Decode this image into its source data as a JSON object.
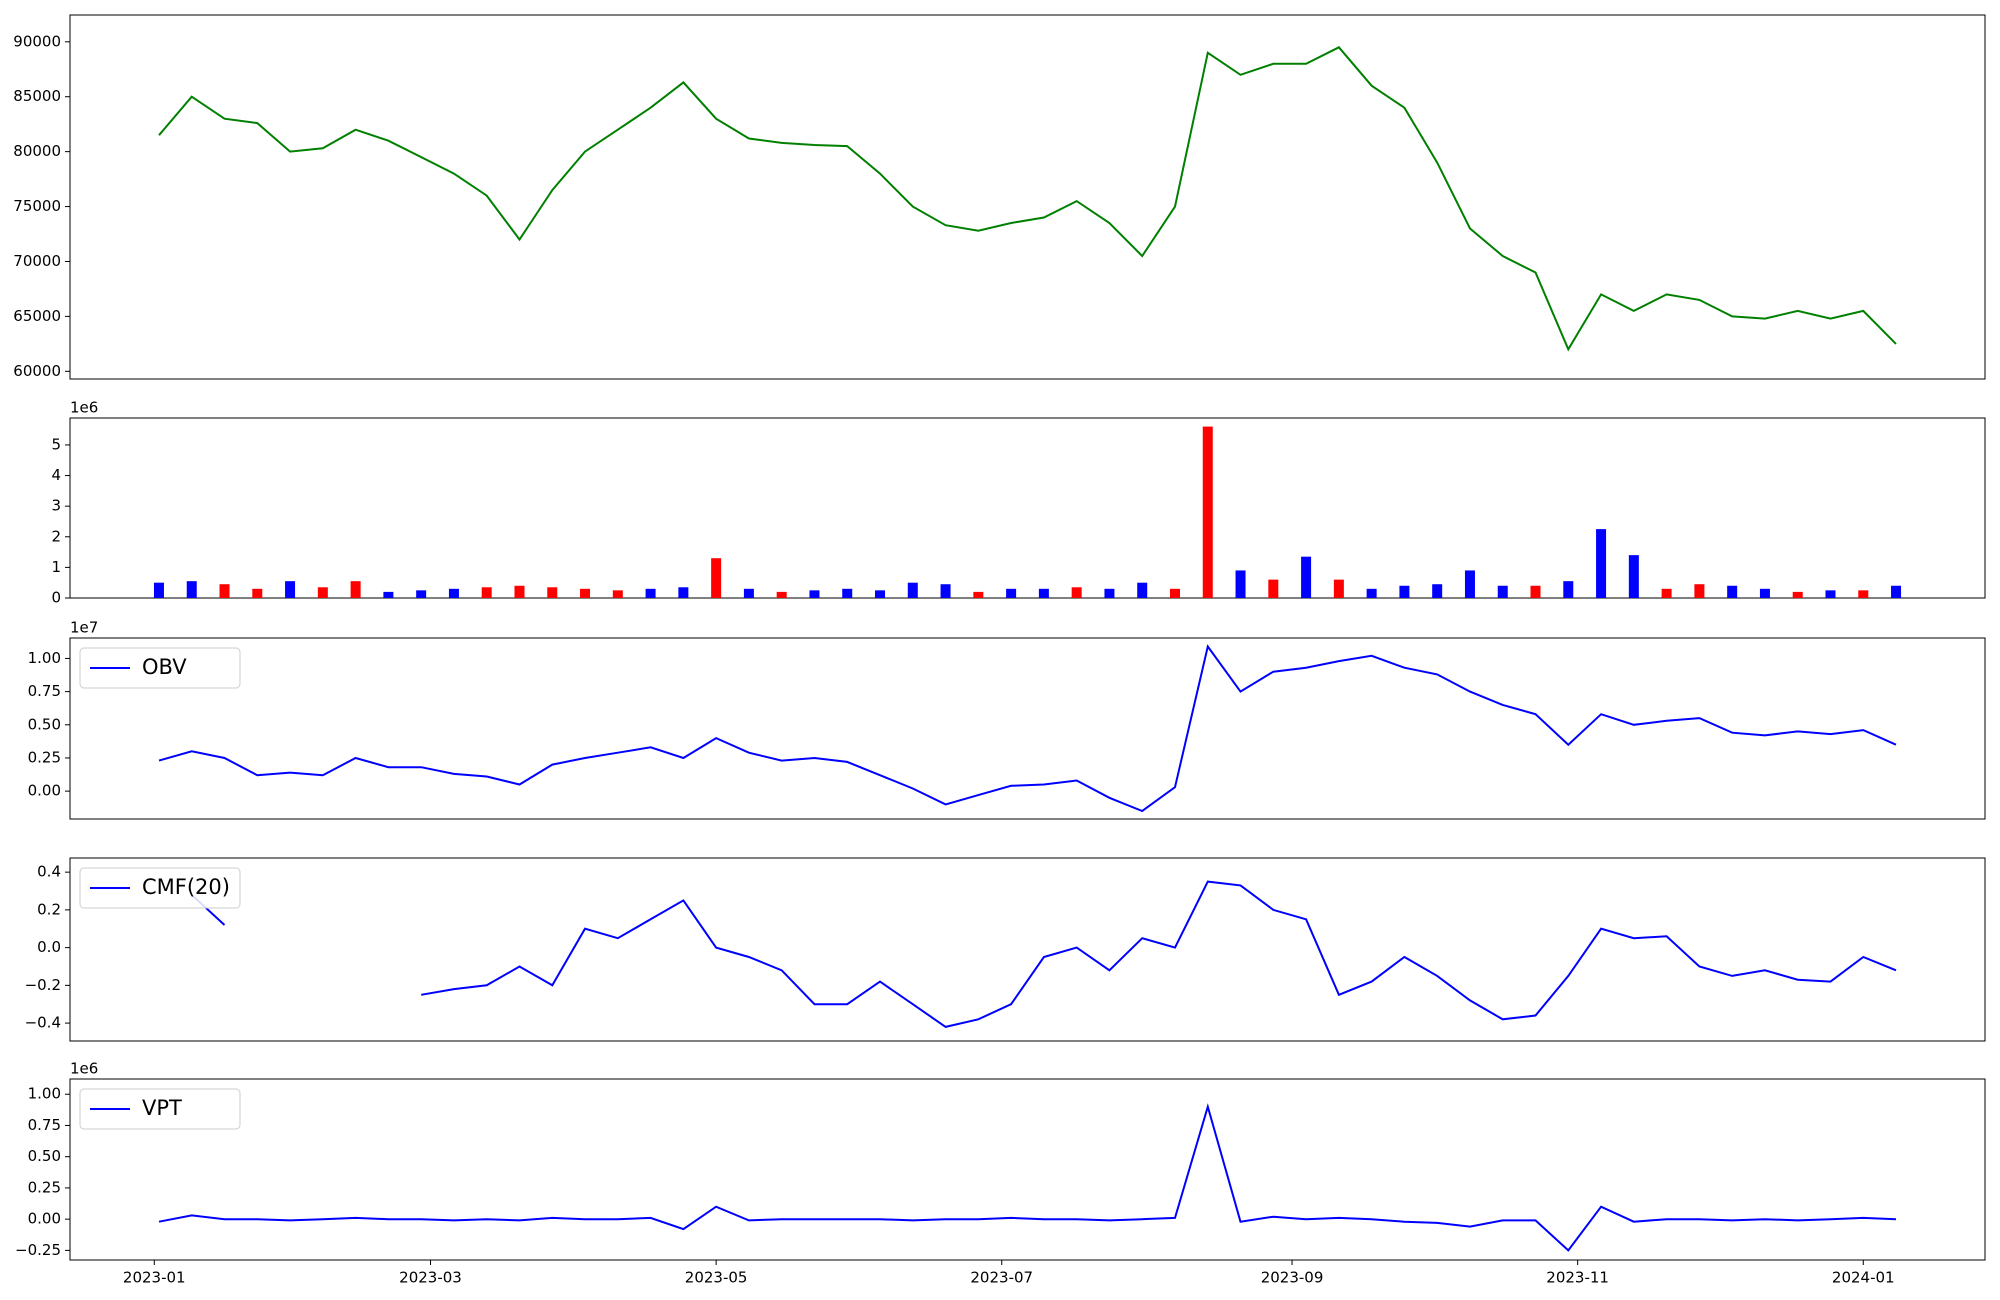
{
  "chart_data": [
    {
      "type": "line",
      "color": "#008000",
      "x": [
        "2023-01-02",
        "2023-01-09",
        "2023-01-16",
        "2023-01-23",
        "2023-01-30",
        "2023-02-06",
        "2023-02-13",
        "2023-02-20",
        "2023-02-27",
        "2023-03-06",
        "2023-03-13",
        "2023-03-20",
        "2023-03-27",
        "2023-04-03",
        "2023-04-10",
        "2023-04-17",
        "2023-04-24",
        "2023-05-01",
        "2023-05-08",
        "2023-05-15",
        "2023-05-22",
        "2023-05-29",
        "2023-06-05",
        "2023-06-12",
        "2023-06-19",
        "2023-06-26",
        "2023-07-03",
        "2023-07-10",
        "2023-07-17",
        "2023-07-24",
        "2023-07-31",
        "2023-08-07",
        "2023-08-14",
        "2023-08-21",
        "2023-08-28",
        "2023-09-04",
        "2023-09-11",
        "2023-09-18",
        "2023-09-25",
        "2023-10-02",
        "2023-10-09",
        "2023-10-16",
        "2023-10-23",
        "2023-10-30",
        "2023-11-06",
        "2023-11-13",
        "2023-11-20",
        "2023-11-27",
        "2023-12-04",
        "2023-12-11",
        "2023-12-18",
        "2023-12-25",
        "2024-01-01",
        "2024-01-08"
      ],
      "values": [
        81500,
        85000,
        83000,
        82600,
        80000,
        80300,
        82000,
        81000,
        79500,
        78000,
        76000,
        72000,
        76500,
        80000,
        82000,
        84000,
        86300,
        83000,
        81200,
        80800,
        80600,
        80500,
        78000,
        75000,
        73300,
        72800,
        73500,
        74000,
        75500,
        73500,
        70500,
        75000,
        89000,
        87000,
        88000,
        88000,
        89500,
        86000,
        84000,
        79000,
        73000,
        70500,
        69000,
        62000,
        67000,
        65500,
        67000,
        66500,
        65000,
        64800,
        65500,
        64800,
        65500,
        62500
      ],
      "xlim": [
        "2022-12-14",
        "2024-01-27"
      ],
      "ylim": [
        59300,
        92440
      ],
      "yticks": [
        60000,
        65000,
        70000,
        75000,
        80000,
        85000,
        90000
      ]
    },
    {
      "type": "bar",
      "offset_label": "1e6",
      "x": [
        "2023-01-02",
        "2023-01-09",
        "2023-01-16",
        "2023-01-23",
        "2023-01-30",
        "2023-02-06",
        "2023-02-13",
        "2023-02-20",
        "2023-02-27",
        "2023-03-06",
        "2023-03-13",
        "2023-03-20",
        "2023-03-27",
        "2023-04-03",
        "2023-04-10",
        "2023-04-17",
        "2023-04-24",
        "2023-05-01",
        "2023-05-08",
        "2023-05-15",
        "2023-05-22",
        "2023-05-29",
        "2023-06-05",
        "2023-06-12",
        "2023-06-19",
        "2023-06-26",
        "2023-07-03",
        "2023-07-10",
        "2023-07-17",
        "2023-07-24",
        "2023-07-31",
        "2023-08-07",
        "2023-08-14",
        "2023-08-21",
        "2023-08-28",
        "2023-09-04",
        "2023-09-11",
        "2023-09-18",
        "2023-09-25",
        "2023-10-02",
        "2023-10-09",
        "2023-10-16",
        "2023-10-23",
        "2023-10-30",
        "2023-11-06",
        "2023-11-13",
        "2023-11-20",
        "2023-11-27",
        "2023-12-04",
        "2023-12-11",
        "2023-12-18",
        "2023-12-25",
        "2024-01-01",
        "2024-01-08"
      ],
      "values": [
        500000,
        550000,
        450000,
        300000,
        550000,
        350000,
        550000,
        200000,
        250000,
        300000,
        350000,
        400000,
        350000,
        300000,
        250000,
        300000,
        350000,
        1300000,
        300000,
        200000,
        250000,
        300000,
        250000,
        500000,
        450000,
        200000,
        300000,
        300000,
        350000,
        300000,
        500000,
        300000,
        5600000,
        900000,
        600000,
        1350000,
        600000,
        300000,
        400000,
        450000,
        900000,
        400000,
        400000,
        550000,
        2250000,
        1400000,
        300000,
        450000,
        400000,
        300000,
        200000,
        250000,
        250000,
        400000
      ],
      "colors": [
        "#0000ff",
        "#0000ff",
        "#ff0000",
        "#ff0000",
        "#0000ff",
        "#ff0000",
        "#ff0000",
        "#0000ff",
        "#0000ff",
        "#0000ff",
        "#ff0000",
        "#ff0000",
        "#ff0000",
        "#ff0000",
        "#ff0000",
        "#0000ff",
        "#0000ff",
        "#ff0000",
        "#0000ff",
        "#ff0000",
        "#0000ff",
        "#0000ff",
        "#0000ff",
        "#0000ff",
        "#0000ff",
        "#ff0000",
        "#0000ff",
        "#0000ff",
        "#ff0000",
        "#0000ff",
        "#0000ff",
        "#ff0000",
        "#ff0000",
        "#0000ff",
        "#ff0000",
        "#0000ff",
        "#ff0000",
        "#0000ff",
        "#0000ff",
        "#0000ff",
        "#0000ff",
        "#0000ff",
        "#ff0000",
        "#0000ff",
        "#0000ff",
        "#0000ff",
        "#ff0000",
        "#ff0000",
        "#0000ff",
        "#0000ff",
        "#ff0000",
        "#0000ff",
        "#ff0000",
        "#0000ff"
      ],
      "xlim": [
        "2022-12-14",
        "2024-01-27"
      ],
      "ylim": [
        0,
        5880000
      ],
      "yticks": [
        {
          "value": 0,
          "label": "0"
        },
        {
          "value": 1000000,
          "label": "1"
        },
        {
          "value": 2000000,
          "label": "2"
        },
        {
          "value": 3000000,
          "label": "3"
        },
        {
          "value": 4000000,
          "label": "4"
        },
        {
          "value": 5000000,
          "label": "5"
        }
      ]
    },
    {
      "type": "line",
      "offset_label": "1e7",
      "legend": "upper left",
      "x": [
        "2023-01-02",
        "2023-01-09",
        "2023-01-16",
        "2023-01-23",
        "2023-01-30",
        "2023-02-06",
        "2023-02-13",
        "2023-02-20",
        "2023-02-27",
        "2023-03-06",
        "2023-03-13",
        "2023-03-20",
        "2023-03-27",
        "2023-04-03",
        "2023-04-10",
        "2023-04-17",
        "2023-04-24",
        "2023-05-01",
        "2023-05-08",
        "2023-05-15",
        "2023-05-22",
        "2023-05-29",
        "2023-06-05",
        "2023-06-12",
        "2023-06-19",
        "2023-06-26",
        "2023-07-03",
        "2023-07-10",
        "2023-07-17",
        "2023-07-24",
        "2023-07-31",
        "2023-08-07",
        "2023-08-14",
        "2023-08-21",
        "2023-08-28",
        "2023-09-04",
        "2023-09-11",
        "2023-09-18",
        "2023-09-25",
        "2023-10-02",
        "2023-10-09",
        "2023-10-16",
        "2023-10-23",
        "2023-10-30",
        "2023-11-06",
        "2023-11-13",
        "2023-11-20",
        "2023-11-27",
        "2023-12-04",
        "2023-12-11",
        "2023-12-18",
        "2023-12-25",
        "2024-01-01",
        "2024-01-08"
      ],
      "series": [
        {
          "name": "OBV",
          "color": "#0000ff",
          "values": [
            2300000,
            3000000,
            2500000,
            1200000,
            1400000,
            1200000,
            2500000,
            1800000,
            1800000,
            1300000,
            1100000,
            500000,
            2000000,
            2500000,
            2900000,
            3300000,
            2500000,
            4000000,
            2900000,
            2300000,
            2500000,
            2200000,
            1200000,
            200000,
            -1000000,
            -300000,
            400000,
            500000,
            800000,
            -500000,
            -1500000,
            300000,
            10900000,
            7500000,
            9000000,
            9300000,
            9800000,
            10200000,
            9300000,
            8800000,
            7500000,
            6500000,
            5800000,
            3500000,
            5800000,
            5000000,
            5300000,
            5500000,
            4400000,
            4200000,
            4500000,
            4300000,
            4600000,
            3500000
          ]
        }
      ],
      "xlim": [
        "2022-12-14",
        "2024-01-27"
      ],
      "ylim": [
        -2100000,
        11540000
      ],
      "yticks": [
        {
          "value": 0,
          "label": "0.00"
        },
        {
          "value": 2500000,
          "label": "0.25"
        },
        {
          "value": 5000000,
          "label": "0.50"
        },
        {
          "value": 7500000,
          "label": "0.75"
        },
        {
          "value": 10000000,
          "label": "1.00"
        }
      ]
    },
    {
      "type": "line",
      "legend": "upper left",
      "x": [
        "2023-01-02",
        "2023-01-09",
        "2023-01-16",
        "2023-01-23",
        "2023-01-30",
        "2023-02-06",
        "2023-02-13",
        "2023-02-20",
        "2023-02-27",
        "2023-03-06",
        "2023-03-13",
        "2023-03-20",
        "2023-03-27",
        "2023-04-03",
        "2023-04-10",
        "2023-04-17",
        "2023-04-24",
        "2023-05-01",
        "2023-05-08",
        "2023-05-15",
        "2023-05-22",
        "2023-05-29",
        "2023-06-05",
        "2023-06-12",
        "2023-06-19",
        "2023-06-26",
        "2023-07-03",
        "2023-07-10",
        "2023-07-17",
        "2023-07-24",
        "2023-07-31",
        "2023-08-07",
        "2023-08-14",
        "2023-08-21",
        "2023-08-28",
        "2023-09-04",
        "2023-09-11",
        "2023-09-18",
        "2023-09-25",
        "2023-10-02",
        "2023-10-09",
        "2023-10-16",
        "2023-10-23",
        "2023-10-30",
        "2023-11-06",
        "2023-11-13",
        "2023-11-20",
        "2023-11-27",
        "2023-12-04",
        "2023-12-11",
        "2023-12-18",
        "2023-12-25",
        "2024-01-01",
        "2024-01-08"
      ],
      "series": [
        {
          "name": "CMF(20)",
          "color": "#0000ff",
          "values": [
            null,
            0.28,
            0.12,
            null,
            null,
            null,
            null,
            null,
            -0.25,
            -0.22,
            -0.2,
            -0.1,
            -0.2,
            0.1,
            0.05,
            0.15,
            0.25,
            0.0,
            -0.05,
            -0.12,
            -0.3,
            -0.3,
            -0.18,
            -0.3,
            -0.42,
            -0.38,
            -0.3,
            -0.05,
            0.0,
            -0.12,
            0.05,
            0.0,
            0.35,
            0.33,
            0.2,
            0.15,
            -0.25,
            -0.18,
            -0.05,
            -0.15,
            -0.28,
            -0.38,
            -0.36,
            -0.15,
            0.1,
            0.05,
            0.06,
            -0.1,
            -0.15,
            -0.12,
            -0.17,
            -0.18,
            -0.05,
            -0.12
          ]
        }
      ],
      "xlim": [
        "2022-12-14",
        "2024-01-27"
      ],
      "ylim": [
        -0.495,
        0.475
      ],
      "yticks": [
        {
          "value": -0.4,
          "label": "−0.4"
        },
        {
          "value": -0.2,
          "label": "−0.2"
        },
        {
          "value": 0,
          "label": "0.0"
        },
        {
          "value": 0.2,
          "label": "0.2"
        },
        {
          "value": 0.4,
          "label": "0.4"
        }
      ]
    },
    {
      "type": "line",
      "offset_label": "1e6",
      "legend": "upper left",
      "x": [
        "2023-01-02",
        "2023-01-09",
        "2023-01-16",
        "2023-01-23",
        "2023-01-30",
        "2023-02-06",
        "2023-02-13",
        "2023-02-20",
        "2023-02-27",
        "2023-03-06",
        "2023-03-13",
        "2023-03-20",
        "2023-03-27",
        "2023-04-03",
        "2023-04-10",
        "2023-04-17",
        "2023-04-24",
        "2023-05-01",
        "2023-05-08",
        "2023-05-15",
        "2023-05-22",
        "2023-05-29",
        "2023-06-05",
        "2023-06-12",
        "2023-06-19",
        "2023-06-26",
        "2023-07-03",
        "2023-07-10",
        "2023-07-17",
        "2023-07-24",
        "2023-07-31",
        "2023-08-07",
        "2023-08-14",
        "2023-08-21",
        "2023-08-28",
        "2023-09-04",
        "2023-09-11",
        "2023-09-18",
        "2023-09-25",
        "2023-10-02",
        "2023-10-09",
        "2023-10-16",
        "2023-10-23",
        "2023-10-30",
        "2023-11-06",
        "2023-11-13",
        "2023-11-20",
        "2023-11-27",
        "2023-12-04",
        "2023-12-11",
        "2023-12-18",
        "2023-12-25",
        "2024-01-01",
        "2024-01-08"
      ],
      "series": [
        {
          "name": "VPT",
          "color": "#0000ff",
          "values": [
            -20000,
            30000,
            0,
            0,
            -10000,
            0,
            10000,
            0,
            0,
            -10000,
            0,
            -10000,
            10000,
            0,
            0,
            10000,
            -80000,
            100000,
            -10000,
            0,
            0,
            0,
            0,
            -10000,
            0,
            0,
            10000,
            0,
            0,
            -10000,
            0,
            10000,
            900000,
            -20000,
            20000,
            0,
            10000,
            0,
            -20000,
            -30000,
            -60000,
            -10000,
            -10000,
            -250000,
            100000,
            -20000,
            0,
            0,
            -10000,
            0,
            -10000,
            0,
            10000,
            0
          ]
        }
      ],
      "xlim": [
        "2022-12-14",
        "2024-01-27"
      ],
      "ylim": [
        -327000,
        1122000
      ],
      "yticks": [
        {
          "value": -250000,
          "label": "−0.25"
        },
        {
          "value": 0,
          "label": "0.00"
        },
        {
          "value": 250000,
          "label": "0.25"
        },
        {
          "value": 500000,
          "label": "0.50"
        },
        {
          "value": 750000,
          "label": "0.75"
        },
        {
          "value": 1000000,
          "label": "1.00"
        }
      ],
      "xticks": [
        {
          "value": "2023-01-01",
          "label": "2023-01"
        },
        {
          "value": "2023-03-01",
          "label": "2023-03"
        },
        {
          "value": "2023-05-01",
          "label": "2023-05"
        },
        {
          "value": "2023-07-01",
          "label": "2023-07"
        },
        {
          "value": "2023-09-01",
          "label": "2023-09"
        },
        {
          "value": "2023-11-01",
          "label": "2023-11"
        },
        {
          "value": "2024-01-01",
          "label": "2024-01"
        }
      ]
    }
  ]
}
